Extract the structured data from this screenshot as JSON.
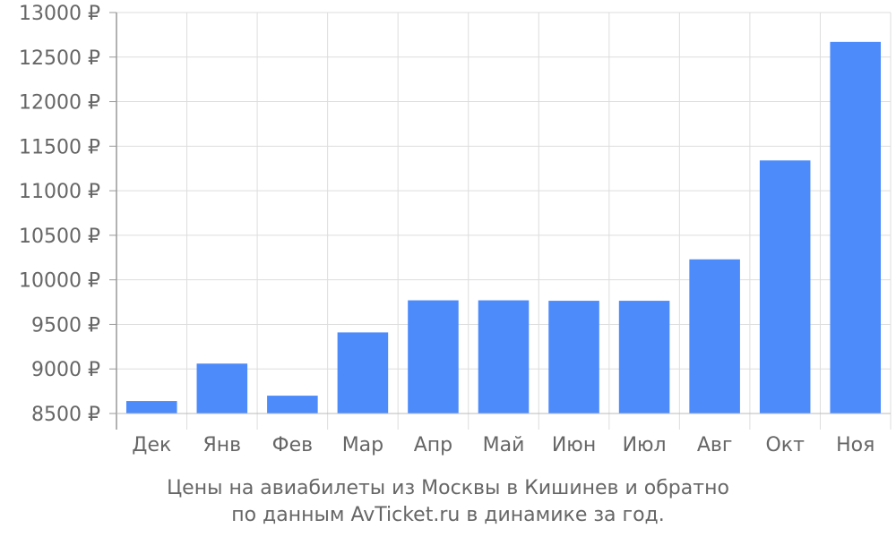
{
  "chart_data": {
    "type": "bar",
    "categories": [
      "Дек",
      "Янв",
      "Фев",
      "Мар",
      "Апр",
      "Май",
      "Июн",
      "Июл",
      "Авг",
      "Окт",
      "Ноя"
    ],
    "values": [
      8640,
      9060,
      8700,
      9410,
      9770,
      9770,
      9765,
      9765,
      10230,
      11340,
      12670
    ],
    "ylim": [
      8500,
      13000
    ],
    "yticks": [
      8500,
      9000,
      9500,
      10000,
      10500,
      11000,
      11500,
      12000,
      12500,
      13000
    ],
    "y_tick_suffix": " ₽",
    "grid": true,
    "bar_color": "#4d8bfb",
    "caption_line1": "Цены на авиабилеты из Москвы в Кишинев и обратно",
    "caption_line2": "по данным AvTicket.ru в динамике за год."
  }
}
